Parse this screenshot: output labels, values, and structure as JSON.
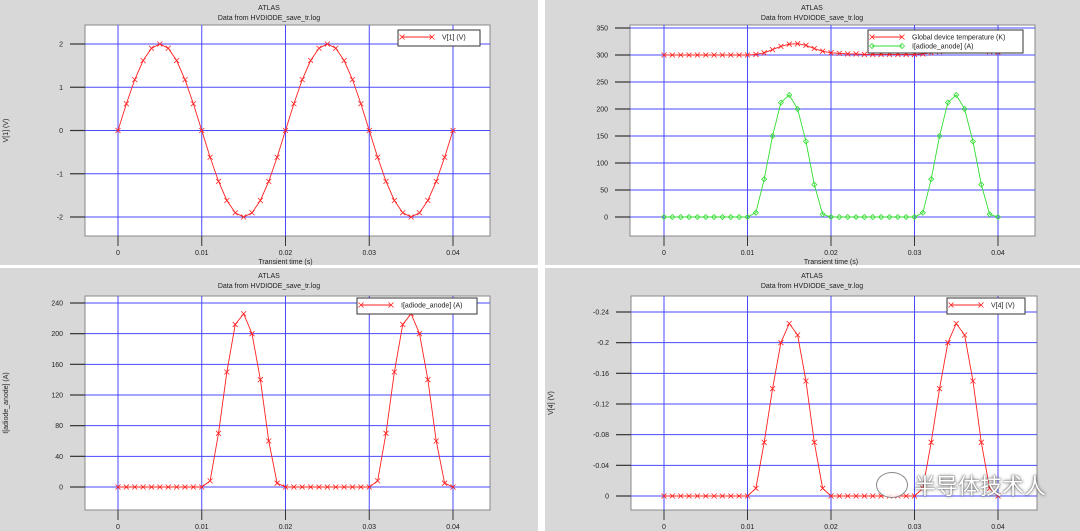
{
  "watermark": {
    "text": "半导体技术人",
    "icon": "wechat-icon"
  },
  "chart_data": [
    {
      "type": "line",
      "title": "ATLAS",
      "subtitle": "Data from HVDIODE_save_tr.log",
      "xlabel": "Transient time (s)",
      "ylabel": "V[1] (V)",
      "xlim": [
        0,
        0.04
      ],
      "ylim": [
        -2,
        2
      ],
      "xticks": [
        "0",
        "0.01",
        "0.02",
        "0.03",
        "0.04"
      ],
      "xtick_values": [
        0,
        0.01,
        0.02,
        0.03,
        0.04
      ],
      "yticks": [
        "-2",
        "-1",
        "0",
        "1",
        "2"
      ],
      "ytick_values": [
        -2,
        -1,
        0,
        1,
        2
      ],
      "grid": true,
      "legend": "top-right",
      "x": [
        0,
        0.001,
        0.002,
        0.003,
        0.004,
        0.005,
        0.006,
        0.007,
        0.008,
        0.009,
        0.01,
        0.011,
        0.012,
        0.013,
        0.014,
        0.015,
        0.016,
        0.017,
        0.018,
        0.019,
        0.02,
        0.021,
        0.022,
        0.023,
        0.024,
        0.025,
        0.026,
        0.027,
        0.028,
        0.029,
        0.03,
        0.031,
        0.032,
        0.033,
        0.034,
        0.035,
        0.036,
        0.037,
        0.038,
        0.039,
        0.04
      ],
      "series": [
        {
          "name": "V[1] (V)",
          "color": "#ff2020",
          "marker": "x",
          "values": [
            0,
            0.618,
            1.176,
            1.618,
            1.902,
            2,
            1.902,
            1.618,
            1.176,
            0.618,
            0,
            -0.618,
            -1.176,
            -1.618,
            -1.902,
            -2,
            -1.902,
            -1.618,
            -1.176,
            -0.618,
            0,
            0.618,
            1.176,
            1.618,
            1.902,
            2,
            1.902,
            1.618,
            1.176,
            0.618,
            0,
            -0.618,
            -1.176,
            -1.618,
            -1.902,
            -2,
            -1.902,
            -1.618,
            -1.176,
            -0.618,
            0
          ]
        }
      ]
    },
    {
      "type": "line",
      "title": "ATLAS",
      "subtitle": "Data from HVDIODE_save_tr.log",
      "xlabel": "Transient time (s)",
      "ylabel": "",
      "xlim": [
        0,
        0.04
      ],
      "ylim": [
        0,
        350
      ],
      "xticks": [
        "0",
        "0.01",
        "0.02",
        "0.03",
        "0.04"
      ],
      "xtick_values": [
        0,
        0.01,
        0.02,
        0.03,
        0.04
      ],
      "yticks": [
        "0",
        "50",
        "100",
        "150",
        "200",
        "250",
        "300",
        "350"
      ],
      "ytick_values": [
        0,
        50,
        100,
        150,
        200,
        250,
        300,
        350
      ],
      "grid": true,
      "legend": "top-right",
      "x": [
        0,
        0.001,
        0.002,
        0.003,
        0.004,
        0.005,
        0.006,
        0.007,
        0.008,
        0.009,
        0.01,
        0.011,
        0.012,
        0.013,
        0.014,
        0.015,
        0.016,
        0.017,
        0.018,
        0.019,
        0.02,
        0.021,
        0.022,
        0.023,
        0.024,
        0.025,
        0.026,
        0.027,
        0.028,
        0.029,
        0.03,
        0.031,
        0.032,
        0.033,
        0.034,
        0.035,
        0.036,
        0.037,
        0.038,
        0.039,
        0.04
      ],
      "series": [
        {
          "name": "Global device temperature (K)",
          "color": "#ff2020",
          "marker": "x",
          "values": [
            300,
            300,
            300,
            300,
            300,
            300,
            300,
            300,
            300,
            300,
            300,
            301,
            304,
            310,
            316,
            320,
            321,
            318,
            312,
            307,
            304,
            303,
            302,
            302,
            301,
            301,
            301,
            301,
            301,
            301,
            301,
            302,
            304,
            306,
            309,
            311,
            312,
            311,
            309,
            306,
            305
          ]
        },
        {
          "name": "I[adiode_anode] (A)",
          "color": "#33dd33",
          "marker": "diamond",
          "values": [
            0,
            0,
            0,
            0,
            0,
            0,
            0,
            0,
            0,
            0,
            0,
            8,
            70,
            150,
            212,
            226,
            200,
            140,
            60,
            5,
            0,
            0,
            0,
            0,
            0,
            0,
            0,
            0,
            0,
            0,
            0,
            8,
            70,
            150,
            212,
            226,
            200,
            140,
            60,
            5,
            0
          ]
        }
      ]
    },
    {
      "type": "line",
      "title": "ATLAS",
      "subtitle": "Data from HVDIODE_save_tr.log",
      "xlabel": "Transient time (s)",
      "ylabel": "I[adiode_anode] (A)",
      "xlim": [
        0,
        0.04
      ],
      "ylim": [
        0,
        240
      ],
      "xticks": [
        "0",
        "0.01",
        "0.02",
        "0.03",
        "0.04"
      ],
      "xtick_values": [
        0,
        0.01,
        0.02,
        0.03,
        0.04
      ],
      "yticks": [
        "0",
        "40",
        "80",
        "120",
        "160",
        "200",
        "240"
      ],
      "ytick_values": [
        0,
        40,
        80,
        120,
        160,
        200,
        240
      ],
      "grid": true,
      "legend": "top-right",
      "x": [
        0,
        0.001,
        0.002,
        0.003,
        0.004,
        0.005,
        0.006,
        0.007,
        0.008,
        0.009,
        0.01,
        0.011,
        0.012,
        0.013,
        0.014,
        0.015,
        0.016,
        0.017,
        0.018,
        0.019,
        0.02,
        0.021,
        0.022,
        0.023,
        0.024,
        0.025,
        0.026,
        0.027,
        0.028,
        0.029,
        0.03,
        0.031,
        0.032,
        0.033,
        0.034,
        0.035,
        0.036,
        0.037,
        0.038,
        0.039,
        0.04
      ],
      "series": [
        {
          "name": "I[adiode_anode] (A)",
          "color": "#ff2020",
          "marker": "x",
          "values": [
            0,
            0,
            0,
            0,
            0,
            0,
            0,
            0,
            0,
            0,
            0,
            8,
            70,
            150,
            212,
            226,
            200,
            140,
            60,
            5,
            0,
            0,
            0,
            0,
            0,
            0,
            0,
            0,
            0,
            0,
            0,
            8,
            70,
            150,
            212,
            226,
            200,
            140,
            60,
            5,
            0
          ]
        }
      ]
    },
    {
      "type": "line",
      "title": "ATLAS",
      "subtitle": "Data from HVDIODE_save_tr.log",
      "xlabel": "Transient time (s)",
      "ylabel": "V[4] (V)",
      "xlim": [
        0,
        0.04
      ],
      "ylim": [
        -0.24,
        0
      ],
      "xticks": [
        "0",
        "0.01",
        "0.02",
        "0.03",
        "0.04"
      ],
      "xtick_values": [
        0,
        0.01,
        0.02,
        0.03,
        0.04
      ],
      "yticks": [
        "-0.24",
        "-0.2",
        "-0.16",
        "-0.12",
        "-0.08",
        "-0.04",
        "0"
      ],
      "ytick_values": [
        -0.24,
        -0.2,
        -0.16,
        -0.12,
        -0.08,
        -0.04,
        0
      ],
      "grid": true,
      "legend": "top-right",
      "x": [
        0,
        0.001,
        0.002,
        0.003,
        0.004,
        0.005,
        0.006,
        0.007,
        0.008,
        0.009,
        0.01,
        0.011,
        0.012,
        0.013,
        0.014,
        0.015,
        0.016,
        0.017,
        0.018,
        0.019,
        0.02,
        0.021,
        0.022,
        0.023,
        0.024,
        0.025,
        0.026,
        0.027,
        0.028,
        0.029,
        0.03,
        0.031,
        0.032,
        0.033,
        0.034,
        0.035,
        0.036,
        0.037,
        0.038,
        0.039,
        0.04
      ],
      "series": [
        {
          "name": "V[4] (V)",
          "color": "#ff2020",
          "marker": "x",
          "values": [
            0,
            0,
            0,
            0,
            0,
            0,
            0,
            0,
            0,
            0,
            0,
            -0.01,
            -0.07,
            -0.14,
            -0.2,
            -0.225,
            -0.21,
            -0.15,
            -0.07,
            -0.01,
            0,
            0,
            0,
            0,
            0,
            0,
            0,
            0,
            0,
            0,
            0,
            -0.01,
            -0.07,
            -0.14,
            -0.2,
            -0.225,
            -0.21,
            -0.15,
            -0.07,
            -0.01,
            0
          ]
        }
      ]
    }
  ]
}
